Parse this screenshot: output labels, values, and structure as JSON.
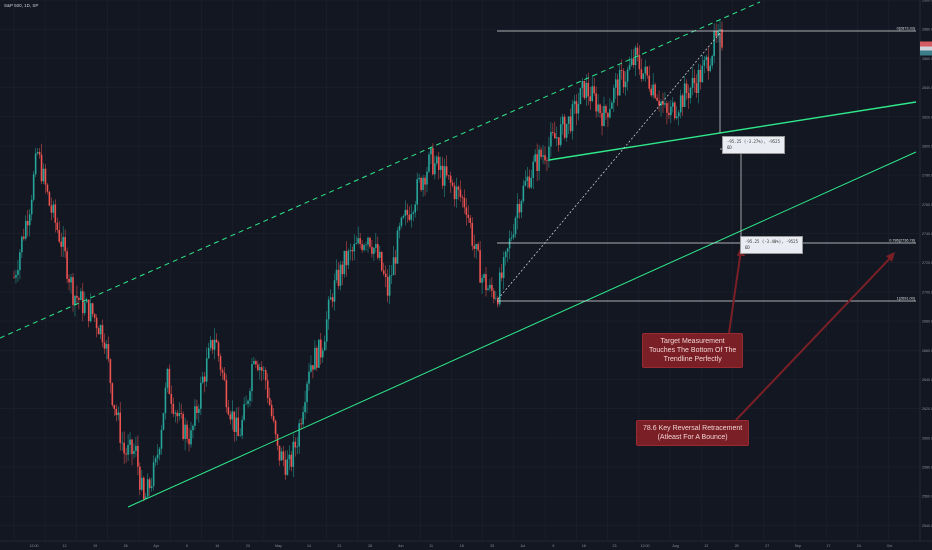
{
  "header": {
    "symbol": "S&P 500, 1D, SP"
  },
  "annotations": {
    "target_note": "Target Measurement\nTouches The Bottom Of The\nTrendline Perfectly",
    "retrace_note": "78.6 Key Reversal Retracement\n(Atleast For A Bounce)",
    "measure_top_line1": "-95.25 (-3.27%), -9525",
    "measure_top_line2": "6D",
    "measure_mid_line1": "-95.25 (-3.40%), -9525",
    "measure_mid_line2": "6D"
  },
  "fib_labels": {
    "top": "0(2873.33)",
    "mid": "0.786(2736.78)",
    "low": "1(2691.00)"
  },
  "colors": {
    "background": "#131722",
    "up": "#26a69a",
    "down": "#ef5350",
    "trend": "#2ee88a",
    "fib": "#e0e0e0",
    "note_bg": "#7a1f25",
    "arrow": "#7a1f25"
  },
  "chart_data": {
    "type": "candlestick",
    "title": "S&P 500, 1D, SP",
    "xlabels": [
      "12:00",
      "12",
      "19",
      "26",
      "Apr",
      "9",
      "16",
      "23",
      "May",
      "14",
      "21",
      "28",
      "Jun",
      "11",
      "18",
      "25",
      "Jul",
      "9",
      "16",
      "23",
      "12:00",
      "Aug",
      "13",
      "20",
      "27",
      "Sep",
      "17",
      "24",
      "Oct"
    ],
    "ylim": [
      2530,
      2900
    ],
    "fib_levels": [
      {
        "ratio": 0,
        "price": 2873.33
      },
      {
        "ratio": 0.786,
        "price": 2736.78
      },
      {
        "ratio": 1,
        "price": 2691.0
      }
    ],
    "y_ticks": [
      2900,
      2880,
      2860,
      2840,
      2820,
      2800,
      2780,
      2760,
      2740,
      2720,
      2700,
      2680,
      2660,
      2640,
      2620,
      2600,
      2580,
      2560,
      2540
    ],
    "price_anchors": [
      [
        0,
        2710
      ],
      [
        8,
        2760
      ],
      [
        12,
        2795
      ],
      [
        18,
        2760
      ],
      [
        24,
        2735
      ],
      [
        30,
        2700
      ],
      [
        36,
        2690
      ],
      [
        40,
        2685
      ],
      [
        46,
        2670
      ],
      [
        50,
        2630
      ],
      [
        56,
        2590
      ],
      [
        62,
        2590
      ],
      [
        66,
        2555
      ],
      [
        72,
        2580
      ],
      [
        78,
        2640
      ],
      [
        84,
        2610
      ],
      [
        90,
        2600
      ],
      [
        96,
        2640
      ],
      [
        102,
        2670
      ],
      [
        108,
        2630
      ],
      [
        114,
        2600
      ],
      [
        118,
        2620
      ],
      [
        122,
        2660
      ],
      [
        128,
        2640
      ],
      [
        134,
        2590
      ],
      [
        140,
        2580
      ],
      [
        144,
        2600
      ],
      [
        150,
        2650
      ],
      [
        156,
        2660
      ],
      [
        162,
        2700
      ],
      [
        168,
        2720
      ],
      [
        174,
        2730
      ],
      [
        180,
        2740
      ],
      [
        186,
        2720
      ],
      [
        190,
        2700
      ],
      [
        196,
        2740
      ],
      [
        202,
        2760
      ],
      [
        208,
        2780
      ],
      [
        212,
        2790
      ],
      [
        218,
        2780
      ],
      [
        224,
        2770
      ],
      [
        230,
        2760
      ],
      [
        234,
        2730
      ],
      [
        238,
        2710
      ],
      [
        242,
        2700
      ],
      [
        246,
        2700
      ],
      [
        250,
        2720
      ],
      [
        256,
        2760
      ],
      [
        262,
        2780
      ],
      [
        266,
        2790
      ],
      [
        272,
        2800
      ],
      [
        278,
        2810
      ],
      [
        284,
        2820
      ],
      [
        290,
        2840
      ],
      [
        296,
        2830
      ],
      [
        300,
        2820
      ],
      [
        306,
        2840
      ],
      [
        312,
        2850
      ],
      [
        316,
        2860
      ],
      [
        320,
        2850
      ],
      [
        326,
        2840
      ],
      [
        332,
        2820
      ],
      [
        338,
        2830
      ],
      [
        344,
        2840
      ],
      [
        350,
        2850
      ],
      [
        356,
        2870
      ],
      [
        360,
        2873
      ]
    ]
  }
}
